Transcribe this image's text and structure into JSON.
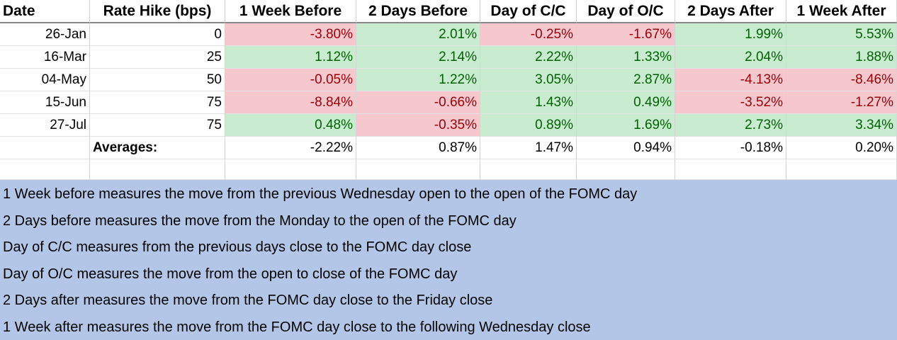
{
  "table": {
    "header": [
      "Date",
      "Rate Hike (bps)",
      "1 Week Before",
      "2 Days Before",
      "Day of C/C",
      "Day of O/C",
      "2 Days After",
      "1 Week After"
    ],
    "rows": [
      [
        "26-Jan",
        "0",
        "-3.80%",
        "2.01%",
        "-0.25%",
        "-1.67%",
        "1.99%",
        "5.53%"
      ],
      [
        "16-Mar",
        "25",
        "1.12%",
        "2.14%",
        "2.22%",
        "1.33%",
        "2.04%",
        "1.88%"
      ],
      [
        "04-May",
        "50",
        "-0.05%",
        "1.22%",
        "3.05%",
        "2.87%",
        "-4.13%",
        "-8.46%"
      ],
      [
        "15-Jun",
        "75",
        "-8.84%",
        "-0.66%",
        "1.43%",
        "0.49%",
        "-3.52%",
        "-1.27%"
      ],
      [
        "27-Jul",
        "75",
        "0.48%",
        "-0.35%",
        "0.89%",
        "1.69%",
        "2.73%",
        "3.34%"
      ]
    ],
    "averages": {
      "label": "Averages:",
      "values": [
        "-2.22%",
        "0.87%",
        "1.47%",
        "0.94%",
        "-0.18%",
        "0.20%"
      ]
    },
    "highlight": {
      "negative": {
        "fill": "#f6c8ce",
        "text": "#9c0006"
      },
      "positive": {
        "fill": "#c9ecd1",
        "text": "#006100"
      }
    }
  },
  "notes": [
    "1 Week before measures the move from the previous Wednesday open to the open of the FOMC day",
    "2 Days before measures the move from the Monday to the open of the FOMC day",
    "Day of C/C measures from the previous days close to the FOMC day close",
    "Day of O/C measures the move from the open to close of the FOMC day",
    "2 Days after measures the move from the FOMC day close to the Friday close",
    "1 Week after measures the move from the FOMC day close to the following Wednesday close"
  ]
}
